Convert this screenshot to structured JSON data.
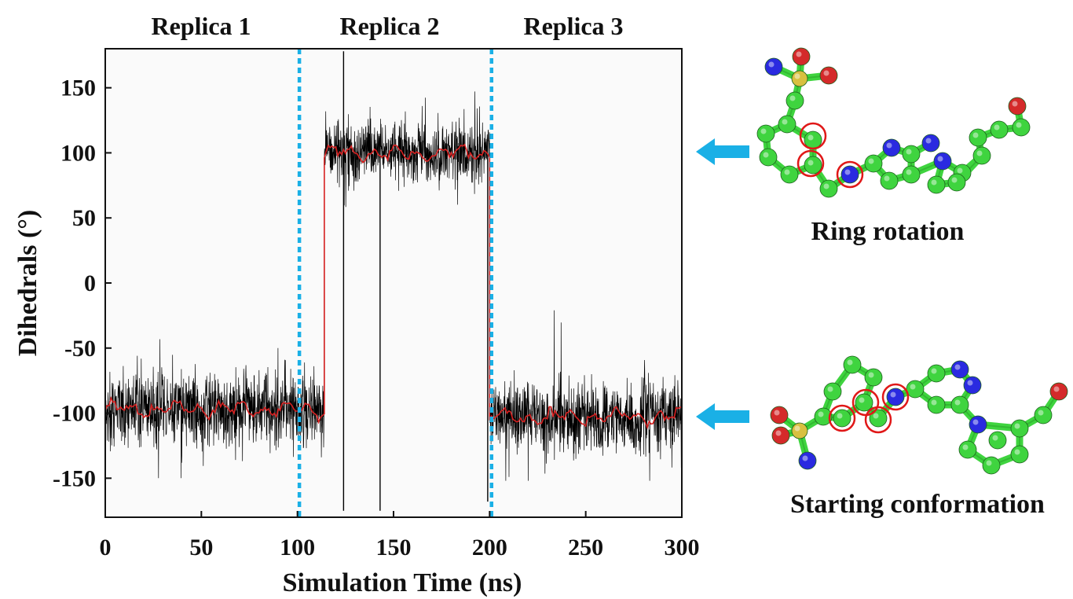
{
  "chart_data": {
    "type": "line",
    "title": "",
    "xlabel": "Simulation Time (ns)",
    "ylabel": "Dihedrals (°)",
    "xlim": [
      0,
      300
    ],
    "ylim": [
      -180,
      180
    ],
    "x_ticks": [
      0,
      50,
      100,
      150,
      200,
      250,
      300
    ],
    "x_tick_labels": [
      "0",
      "50",
      "100",
      "150",
      "200",
      "250",
      "300"
    ],
    "y_ticks": [
      150,
      100,
      50,
      0,
      -50,
      -100,
      -150
    ],
    "y_tick_labels": [
      "150",
      "100",
      "50",
      "0",
      "-50",
      "-100",
      "-150"
    ],
    "grid": false,
    "legend": "none",
    "replica_labels": [
      "Replica 1",
      "Replica 2",
      "Replica 3"
    ],
    "replica_boundaries": [
      101,
      201
    ],
    "series": [
      {
        "role": "raw dihedral trace",
        "color": "#000000",
        "segments": [
          {
            "x_range": [
              0,
              114
            ],
            "mean": -97,
            "noise_sd": 14,
            "min": -150,
            "max": -30
          },
          {
            "x_range": [
              114,
              200
            ],
            "mean": 100,
            "noise_sd": 12,
            "min": 25,
            "max": 175
          },
          {
            "x_range": [
              200,
              300
            ],
            "mean": -103,
            "noise_sd": 14,
            "min": -152,
            "max": 35
          }
        ],
        "spikes": [
          {
            "x": 124,
            "y": 178
          },
          {
            "x": 124,
            "y": -175
          },
          {
            "x": 143,
            "y": -175
          },
          {
            "x": 199,
            "y": -168
          }
        ]
      },
      {
        "role": "smoothed running average",
        "color": "#d62020",
        "segments": [
          {
            "x_range": [
              0,
              114
            ],
            "mean": -97
          },
          {
            "x_range": [
              114,
              200
            ],
            "mean": 100
          },
          {
            "x_range": [
              200,
              300
            ],
            "mean": -103
          }
        ]
      }
    ],
    "annotations": [
      {
        "text": "Ring rotation",
        "points_to_y": 100
      },
      {
        "text": "Starting conformation",
        "points_to_y": -102
      }
    ]
  },
  "colors": {
    "raw_trace": "#000000",
    "smoothed_trace": "#d62020",
    "boundary_line": "#1ab0e6",
    "arrow": "#1ab0e6",
    "highlight_circle": "#e01818",
    "carbon": "#3fd43f",
    "nitrogen": "#2a2ae0",
    "oxygen": "#d42a2a",
    "sulfur": "#d8c040"
  },
  "structures": [
    {
      "caption": "Ring rotation",
      "icon": "molecule-ring-rotated"
    },
    {
      "caption": "Starting conformation",
      "icon": "molecule-starting"
    }
  ]
}
